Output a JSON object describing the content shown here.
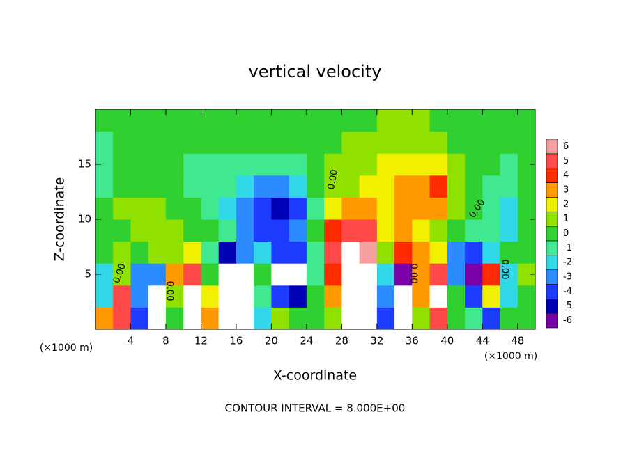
{
  "chart_data": {
    "type": "heatmap",
    "title": "vertical velocity",
    "x_label": "X-coordinate",
    "y_label": "Z-coordinate",
    "x_unit": "(×1000 m)",
    "annotation": "CONTOUR INTERVAL = 8.000E+00",
    "contour_label": "0.00",
    "xlim": [
      0,
      50
    ],
    "ylim": [
      0,
      20
    ],
    "xticks": [
      4,
      8,
      12,
      16,
      20,
      24,
      28,
      32,
      36,
      40,
      44,
      48
    ],
    "yticks": [
      5,
      10,
      15
    ],
    "x": [
      1,
      3,
      5,
      7,
      9,
      11,
      13,
      15,
      17,
      19,
      21,
      23,
      25,
      27,
      29,
      31,
      33,
      35,
      37,
      39,
      41,
      43,
      45,
      47,
      49
    ],
    "z": [
      1,
      3,
      5,
      7,
      9,
      11,
      13,
      15,
      17,
      19
    ],
    "values": [
      [
        3,
        5,
        -4,
        -8,
        0,
        8,
        3,
        -8,
        -8,
        -2,
        1,
        0,
        0,
        1,
        8,
        8,
        -4,
        -8,
        1,
        5,
        0,
        -1,
        -4,
        0,
        0
      ],
      [
        -2,
        5,
        -3,
        -8,
        1,
        8,
        2,
        -8,
        -8,
        -1,
        -4,
        -5,
        0,
        3,
        8,
        8,
        -3,
        -8,
        3,
        8,
        0,
        -4,
        2,
        -2,
        0
      ],
      [
        -2,
        1,
        -3,
        -3,
        3,
        5,
        0,
        -8,
        -8,
        0,
        -8,
        -8,
        -1,
        4,
        8,
        8,
        -2,
        -6,
        3,
        5,
        -3,
        -6,
        4,
        -2,
        1
      ],
      [
        0,
        1,
        0,
        1,
        1,
        2,
        -1,
        -5,
        -3,
        -2,
        -4,
        -4,
        -1,
        5,
        8,
        6,
        1,
        4,
        3,
        2,
        -3,
        -4,
        -2,
        0,
        0
      ],
      [
        0,
        0,
        1,
        1,
        1,
        0,
        0,
        -1,
        -3,
        -4,
        -4,
        -3,
        0,
        4,
        5,
        5,
        2,
        3,
        2,
        1,
        0,
        -1,
        -1,
        -2,
        0
      ],
      [
        0,
        1,
        1,
        1,
        0,
        0,
        -1,
        -2,
        -3,
        -4,
        -5,
        -4,
        -1,
        2,
        3,
        3,
        2,
        3,
        3,
        3,
        1,
        0,
        -1,
        -2,
        0
      ],
      [
        -1,
        0,
        0,
        0,
        0,
        -1,
        -1,
        -1,
        -2,
        -3,
        -3,
        -2,
        0,
        1,
        1,
        2,
        2,
        3,
        3,
        4,
        1,
        0,
        -1,
        -1,
        0
      ],
      [
        -1,
        0,
        0,
        0,
        0,
        -1,
        -1,
        -1,
        -1,
        -1,
        -1,
        -1,
        0,
        1,
        1,
        1,
        2,
        2,
        2,
        2,
        1,
        0,
        0,
        -1,
        0
      ],
      [
        -1,
        0,
        0,
        0,
        0,
        0,
        0,
        0,
        0,
        0,
        0,
        0,
        0,
        0,
        1,
        1,
        1,
        1,
        1,
        1,
        0,
        0,
        0,
        0,
        0
      ],
      [
        0,
        0,
        0,
        0,
        0,
        0,
        0,
        0,
        0,
        0,
        0,
        0,
        0,
        0,
        0,
        0,
        1,
        1,
        1,
        0,
        0,
        0,
        0,
        0,
        0
      ]
    ],
    "colorbar": {
      "levels": [
        -6,
        -5,
        -4,
        -3,
        -2,
        -1,
        0,
        1,
        2,
        3,
        4,
        5,
        6
      ],
      "colors": [
        "#7a00a8",
        "#0000b4",
        "#1e3cff",
        "#2c8cff",
        "#30d8e8",
        "#40e890",
        "#30d030",
        "#90e000",
        "#f0f000",
        "#ff9a00",
        "#ff2a00",
        "#ff4848",
        "#f4a0a0"
      ],
      "out_of_range_color": "#ffffff"
    }
  }
}
